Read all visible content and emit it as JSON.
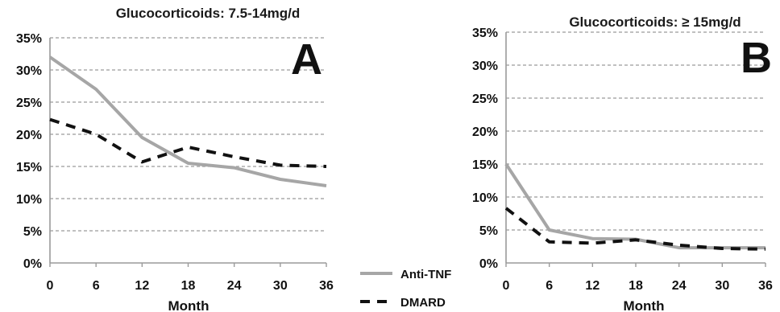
{
  "colors": {
    "anti_tnf": "#a6a6a6",
    "dmard": "#111111",
    "grid": "#9a9a9a",
    "axis": "#9a9a9a"
  },
  "legend": [
    {
      "name": "Anti-TNF",
      "style": "solid gray"
    },
    {
      "name": "DMARD",
      "style": "dashed black"
    }
  ],
  "chart_data": [
    {
      "type": "line",
      "panel_letter": "A",
      "title": "Glucocorticoids:  7.5-14mg/d",
      "xlabel": "Month",
      "ylabel": "",
      "x": [
        0,
        6,
        12,
        18,
        24,
        30,
        36
      ],
      "x_tick_labels": [
        "0",
        "6",
        "12",
        "18",
        "24",
        "30",
        "36"
      ],
      "y_tick_labels": [
        "0%",
        "5%",
        "10%",
        "15%",
        "20%",
        "25%",
        "30%",
        "35%"
      ],
      "ylim": [
        0,
        35
      ],
      "grid": "horizontal dashed",
      "legend_position": "right of panel, bottom",
      "series": [
        {
          "name": "Anti-TNF",
          "values": [
            32,
            27,
            19.5,
            15.5,
            14.8,
            13,
            12
          ]
        },
        {
          "name": "DMARD",
          "values": [
            22.3,
            20,
            15.7,
            18,
            16.5,
            15.2,
            15
          ]
        }
      ]
    },
    {
      "type": "line",
      "panel_letter": "B",
      "title": "Glucocorticoids:  ≥ 15mg/d",
      "xlabel": "Month",
      "ylabel": "",
      "x": [
        0,
        6,
        12,
        18,
        24,
        30,
        36
      ],
      "x_tick_labels": [
        "0",
        "6",
        "12",
        "18",
        "24",
        "30",
        "36"
      ],
      "y_tick_labels": [
        "0%",
        "5%",
        "10%",
        "15%",
        "20%",
        "25%",
        "30%",
        "35%"
      ],
      "ylim": [
        0,
        35
      ],
      "grid": "horizontal dashed",
      "series": [
        {
          "name": "Anti-TNF",
          "values": [
            15,
            5,
            3.7,
            3.6,
            2.3,
            2.3,
            2.3
          ]
        },
        {
          "name": "DMARD",
          "values": [
            8.3,
            3.2,
            3,
            3.5,
            2.7,
            2.2,
            2.1
          ]
        }
      ]
    }
  ]
}
